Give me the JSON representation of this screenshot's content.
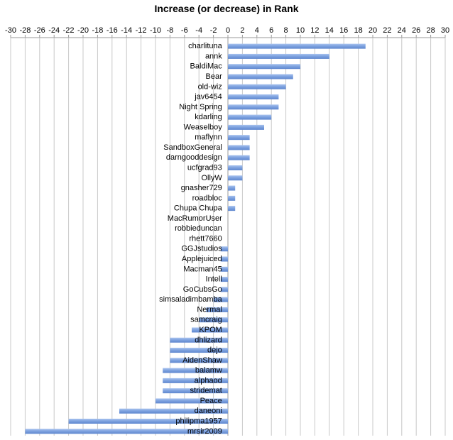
{
  "chart_data": {
    "type": "bar",
    "orientation": "horizontal",
    "title": "Increase (or decrease) in Rank",
    "xlim": [
      -30,
      30
    ],
    "x_ticks": [
      -30,
      -28,
      -26,
      -24,
      -22,
      -20,
      -18,
      -16,
      -14,
      -12,
      -10,
      -8,
      -6,
      -4,
      -2,
      0,
      2,
      4,
      6,
      8,
      10,
      12,
      14,
      16,
      18,
      20,
      22,
      24,
      26,
      28,
      30
    ],
    "grid": true,
    "bar_color": "#7fa3e0",
    "categories": [
      "charlituna",
      "annk",
      "BaldiMac",
      "Bear",
      "old-wiz",
      "jav6454",
      "Night Spring",
      "kdarling",
      "Weaselboy",
      "maflynn",
      "SandboxGeneral",
      "darngooddesign",
      "ucfgrad93",
      "OllyW",
      "gnasher729",
      "roadbloc",
      "Chupa Chupa",
      "MacRumorUser",
      "robbieduncan",
      "rhett7660",
      "GGJstudios",
      "Applejuiced",
      "Macman45",
      "Intell",
      "GoCubsGo",
      "simsaladimbamba",
      "Nermal",
      "samcraig",
      "KPOM",
      "dhlizard",
      "dejo",
      "AidenShaw",
      "balamw",
      "alphaod",
      "stridemat",
      "Peace",
      "daneoni",
      "philipma1957",
      "mrsir2009"
    ],
    "values": [
      19,
      14,
      10,
      9,
      8,
      7,
      7,
      6,
      5,
      3,
      3,
      3,
      2,
      2,
      1,
      1,
      1,
      0,
      0,
      0,
      -1,
      -1,
      -1,
      -1,
      -1,
      -2,
      -3,
      -4,
      -5,
      -8,
      -8,
      -8,
      -9,
      -9,
      -9,
      -10,
      -15,
      -22,
      -28
    ]
  }
}
